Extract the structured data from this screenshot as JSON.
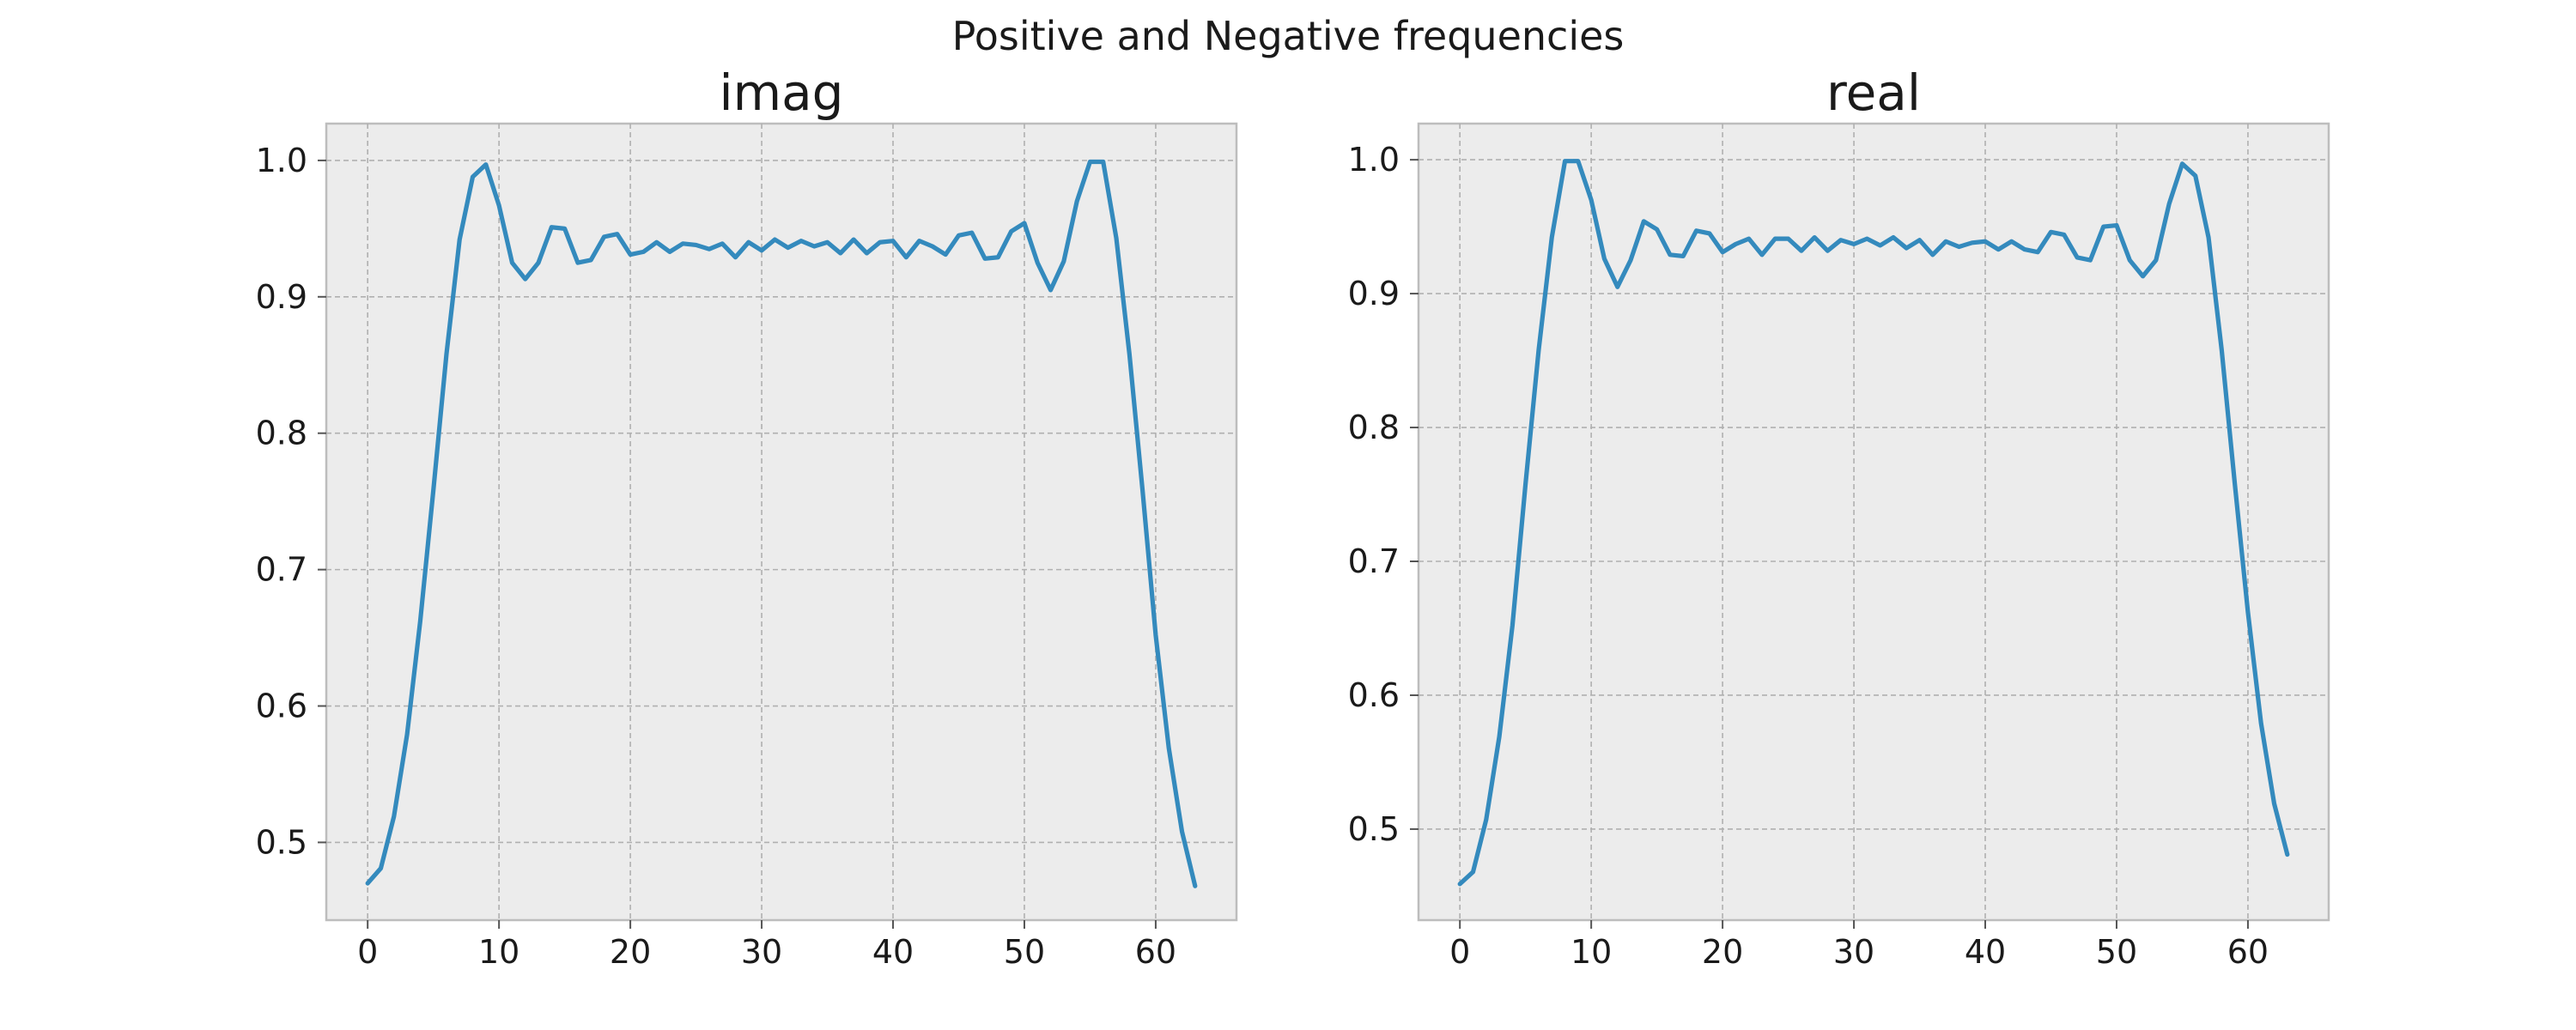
{
  "figure": {
    "suptitle": "Positive and Negative frequencies"
  },
  "colors": {
    "line": "#348abd",
    "plot_background": "#ececec",
    "grid": "#b0b0b0",
    "frame": "#bdbdbd"
  },
  "chart_data": [
    {
      "type": "line",
      "title": "imag",
      "xlabel": "",
      "ylabel": "",
      "xlim": [
        -3.15,
        66.15
      ],
      "ylim": [
        0.443,
        1.027
      ],
      "xticks": [
        0,
        10,
        20,
        30,
        40,
        50,
        60
      ],
      "yticks": [
        0.5,
        0.6,
        0.7,
        0.8,
        0.9,
        1.0
      ],
      "xtick_labels": [
        "0",
        "10",
        "20",
        "30",
        "40",
        "50",
        "60"
      ],
      "ytick_labels": [
        "0.5",
        "0.6",
        "0.7",
        "0.8",
        "0.9",
        "1.0"
      ],
      "grid": true,
      "series": [
        {
          "x": [
            0,
            1,
            2,
            3,
            4,
            5,
            6,
            7,
            8,
            9,
            10,
            11,
            12,
            13,
            14,
            15,
            16,
            17,
            18,
            19,
            20,
            21,
            22,
            23,
            24,
            25,
            26,
            27,
            28,
            29,
            30,
            31,
            32,
            33,
            34,
            35,
            36,
            37,
            38,
            39,
            40,
            41,
            42,
            43,
            44,
            45,
            46,
            47,
            48,
            49,
            50,
            51,
            52,
            53,
            54,
            55,
            56,
            57,
            58,
            59,
            60,
            61,
            62,
            63
          ],
          "y": [
            0.47,
            0.481,
            0.519,
            0.579,
            0.662,
            0.758,
            0.858,
            0.942,
            0.988,
            0.997,
            0.967,
            0.925,
            0.913,
            0.925,
            0.951,
            0.95,
            0.925,
            0.927,
            0.944,
            0.946,
            0.931,
            0.933,
            0.94,
            0.933,
            0.939,
            0.938,
            0.935,
            0.939,
            0.929,
            0.94,
            0.934,
            0.942,
            0.936,
            0.941,
            0.937,
            0.94,
            0.932,
            0.942,
            0.932,
            0.94,
            0.941,
            0.929,
            0.941,
            0.937,
            0.931,
            0.945,
            0.947,
            0.928,
            0.929,
            0.948,
            0.954,
            0.925,
            0.905,
            0.926,
            0.97,
            0.999,
            0.999,
            0.943,
            0.858,
            0.758,
            0.652,
            0.569,
            0.508,
            0.468
          ]
        }
      ]
    },
    {
      "type": "line",
      "title": "real",
      "xlabel": "",
      "ylabel": "",
      "xlim": [
        -3.15,
        66.15
      ],
      "ylim": [
        0.432,
        1.027
      ],
      "xticks": [
        0,
        10,
        20,
        30,
        40,
        50,
        60
      ],
      "yticks": [
        0.5,
        0.6,
        0.7,
        0.8,
        0.9,
        1.0
      ],
      "xtick_labels": [
        "0",
        "10",
        "20",
        "30",
        "40",
        "50",
        "60"
      ],
      "ytick_labels": [
        "0.5",
        "0.6",
        "0.7",
        "0.8",
        "0.9",
        "1.0"
      ],
      "grid": true,
      "series": [
        {
          "x": [
            0,
            1,
            2,
            3,
            4,
            5,
            6,
            7,
            8,
            9,
            10,
            11,
            12,
            13,
            14,
            15,
            16,
            17,
            18,
            19,
            20,
            21,
            22,
            23,
            24,
            25,
            26,
            27,
            28,
            29,
            30,
            31,
            32,
            33,
            34,
            35,
            36,
            37,
            38,
            39,
            40,
            41,
            42,
            43,
            44,
            45,
            46,
            47,
            48,
            49,
            50,
            51,
            52,
            53,
            54,
            55,
            56,
            57,
            58,
            59,
            60,
            61,
            62,
            63
          ],
          "y": [
            0.459,
            0.468,
            0.507,
            0.569,
            0.652,
            0.758,
            0.858,
            0.942,
            0.999,
            0.999,
            0.97,
            0.926,
            0.905,
            0.925,
            0.954,
            0.948,
            0.929,
            0.928,
            0.947,
            0.945,
            0.931,
            0.937,
            0.941,
            0.929,
            0.941,
            0.941,
            0.932,
            0.942,
            0.932,
            0.94,
            0.937,
            0.941,
            0.936,
            0.942,
            0.934,
            0.94,
            0.929,
            0.939,
            0.935,
            0.938,
            0.939,
            0.933,
            0.939,
            0.933,
            0.931,
            0.946,
            0.944,
            0.927,
            0.925,
            0.95,
            0.951,
            0.925,
            0.913,
            0.925,
            0.967,
            0.997,
            0.988,
            0.942,
            0.858,
            0.758,
            0.662,
            0.579,
            0.519,
            0.481
          ]
        }
      ]
    }
  ]
}
